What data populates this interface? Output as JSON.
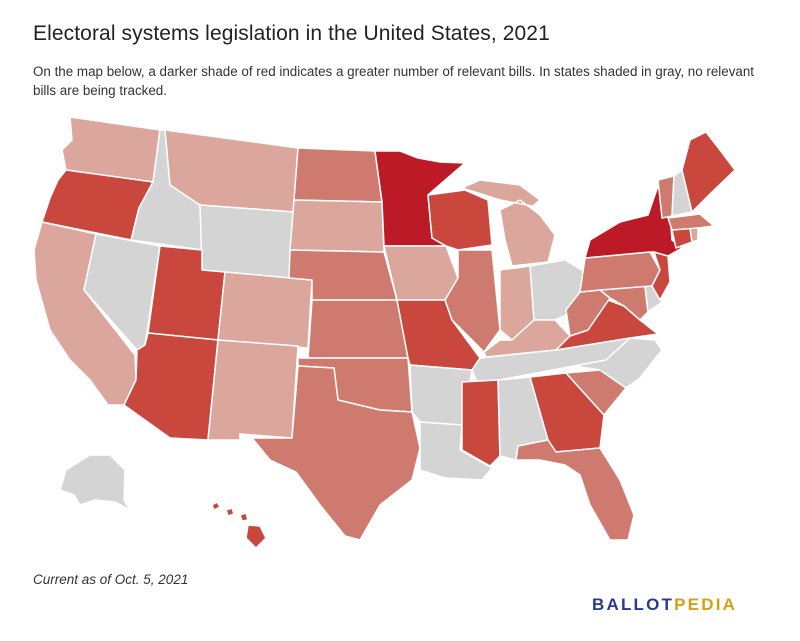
{
  "header": {
    "title": "Electoral systems legislation in the United States, 2021",
    "subtitle": "On the map below, a darker shade of red indicates a greater number of relevant bills. In states shaded in gray, no relevant bills are being tracked."
  },
  "footer": {
    "note": "Current as of Oct. 5, 2021",
    "logo_part1": "BALLOT",
    "logo_part2": "PEDIA"
  },
  "colors": {
    "gray": "#d4d4d4",
    "light": "#dba69c",
    "medium": "#cf7a6e",
    "dark": "#c9473d",
    "darkest": "#bd1a27",
    "logo_blue": "#2b3a8c",
    "logo_gold": "#d4a017"
  },
  "map": {
    "states": [
      {
        "code": "WA",
        "shade": "light"
      },
      {
        "code": "OR",
        "shade": "dark"
      },
      {
        "code": "CA",
        "shade": "light"
      },
      {
        "code": "ID",
        "shade": "gray"
      },
      {
        "code": "NV",
        "shade": "gray"
      },
      {
        "code": "MT",
        "shade": "light"
      },
      {
        "code": "WY",
        "shade": "gray"
      },
      {
        "code": "UT",
        "shade": "dark"
      },
      {
        "code": "AZ",
        "shade": "dark"
      },
      {
        "code": "CO",
        "shade": "light"
      },
      {
        "code": "NM",
        "shade": "light"
      },
      {
        "code": "ND",
        "shade": "medium"
      },
      {
        "code": "SD",
        "shade": "light"
      },
      {
        "code": "NE",
        "shade": "medium"
      },
      {
        "code": "KS",
        "shade": "medium"
      },
      {
        "code": "OK",
        "shade": "medium"
      },
      {
        "code": "TX",
        "shade": "medium"
      },
      {
        "code": "MN",
        "shade": "darkest"
      },
      {
        "code": "IA",
        "shade": "light"
      },
      {
        "code": "MO",
        "shade": "dark"
      },
      {
        "code": "AR",
        "shade": "gray"
      },
      {
        "code": "LA",
        "shade": "gray"
      },
      {
        "code": "WI",
        "shade": "dark"
      },
      {
        "code": "IL",
        "shade": "medium"
      },
      {
        "code": "MI",
        "shade": "light"
      },
      {
        "code": "IN",
        "shade": "light"
      },
      {
        "code": "OH",
        "shade": "gray"
      },
      {
        "code": "KY",
        "shade": "light"
      },
      {
        "code": "TN",
        "shade": "gray"
      },
      {
        "code": "MS",
        "shade": "dark"
      },
      {
        "code": "AL",
        "shade": "gray"
      },
      {
        "code": "GA",
        "shade": "dark"
      },
      {
        "code": "FL",
        "shade": "medium"
      },
      {
        "code": "SC",
        "shade": "medium"
      },
      {
        "code": "NC",
        "shade": "gray"
      },
      {
        "code": "VA",
        "shade": "dark"
      },
      {
        "code": "WV",
        "shade": "medium"
      },
      {
        "code": "PA",
        "shade": "medium"
      },
      {
        "code": "NY",
        "shade": "darkest"
      },
      {
        "code": "VT",
        "shade": "medium"
      },
      {
        "code": "NH",
        "shade": "gray"
      },
      {
        "code": "ME",
        "shade": "dark"
      },
      {
        "code": "MA",
        "shade": "medium"
      },
      {
        "code": "RI",
        "shade": "light"
      },
      {
        "code": "CT",
        "shade": "dark"
      },
      {
        "code": "NJ",
        "shade": "dark"
      },
      {
        "code": "DE",
        "shade": "gray"
      },
      {
        "code": "MD",
        "shade": "medium"
      },
      {
        "code": "AK",
        "shade": "gray"
      },
      {
        "code": "HI",
        "shade": "dark"
      }
    ]
  }
}
